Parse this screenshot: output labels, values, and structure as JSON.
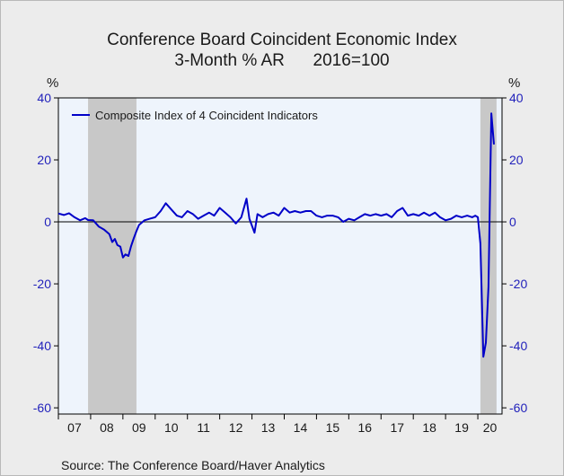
{
  "chart_data": {
    "type": "line",
    "title": "Conference Board Coincident Economic Index",
    "subtitle": "3-Month % AR      2016=100",
    "ylabel_left": "%",
    "ylabel_right": "%",
    "source": "Source:  The Conference Board/Haver Analytics",
    "ylim": [
      -62,
      40
    ],
    "yticks": [
      40,
      20,
      0,
      -20,
      -40,
      -60
    ],
    "xlim": [
      2007.0,
      2020.75
    ],
    "x_tick_labels": [
      "07",
      "08",
      "09",
      "10",
      "11",
      "12",
      "13",
      "14",
      "15",
      "16",
      "17",
      "18",
      "19",
      "20"
    ],
    "legend_position": "top-left",
    "recessions": [
      [
        2007.92,
        2009.42
      ],
      [
        2020.08,
        2020.58
      ]
    ],
    "series": [
      {
        "name": "Composite Index of 4 Coincident Indicators",
        "color": "#0000c8",
        "points": [
          [
            2007.0,
            2.7
          ],
          [
            2007.17,
            2.2
          ],
          [
            2007.33,
            2.8
          ],
          [
            2007.5,
            1.5
          ],
          [
            2007.67,
            0.5
          ],
          [
            2007.83,
            1.2
          ],
          [
            2007.92,
            0.6
          ],
          [
            2008.08,
            0.5
          ],
          [
            2008.25,
            -1.5
          ],
          [
            2008.42,
            -2.5
          ],
          [
            2008.58,
            -4.0
          ],
          [
            2008.67,
            -6.5
          ],
          [
            2008.75,
            -5.5
          ],
          [
            2008.83,
            -7.5
          ],
          [
            2008.92,
            -8.0
          ],
          [
            2009.0,
            -11.5
          ],
          [
            2009.08,
            -10.5
          ],
          [
            2009.17,
            -11.0
          ],
          [
            2009.25,
            -8.0
          ],
          [
            2009.33,
            -5.5
          ],
          [
            2009.42,
            -3.0
          ],
          [
            2009.5,
            -1.0
          ],
          [
            2009.67,
            0.5
          ],
          [
            2009.83,
            1.0
          ],
          [
            2010.0,
            1.5
          ],
          [
            2010.17,
            3.5
          ],
          [
            2010.33,
            6.0
          ],
          [
            2010.5,
            4.0
          ],
          [
            2010.67,
            2.0
          ],
          [
            2010.83,
            1.5
          ],
          [
            2011.0,
            3.5
          ],
          [
            2011.17,
            2.5
          ],
          [
            2011.33,
            1.0
          ],
          [
            2011.5,
            2.0
          ],
          [
            2011.67,
            3.0
          ],
          [
            2011.83,
            2.0
          ],
          [
            2012.0,
            4.5
          ],
          [
            2012.17,
            3.0
          ],
          [
            2012.33,
            1.5
          ],
          [
            2012.5,
            -0.5
          ],
          [
            2012.67,
            1.5
          ],
          [
            2012.83,
            7.5
          ],
          [
            2012.92,
            1.0
          ],
          [
            2013.08,
            -3.5
          ],
          [
            2013.17,
            2.5
          ],
          [
            2013.33,
            1.5
          ],
          [
            2013.5,
            2.5
          ],
          [
            2013.67,
            3.0
          ],
          [
            2013.83,
            2.0
          ],
          [
            2014.0,
            4.5
          ],
          [
            2014.17,
            3.0
          ],
          [
            2014.33,
            3.5
          ],
          [
            2014.5,
            3.0
          ],
          [
            2014.67,
            3.5
          ],
          [
            2014.83,
            3.5
          ],
          [
            2015.0,
            2.0
          ],
          [
            2015.17,
            1.5
          ],
          [
            2015.33,
            2.0
          ],
          [
            2015.5,
            2.0
          ],
          [
            2015.67,
            1.5
          ],
          [
            2015.83,
            0.0
          ],
          [
            2016.0,
            1.0
          ],
          [
            2016.17,
            0.5
          ],
          [
            2016.33,
            1.5
          ],
          [
            2016.5,
            2.5
          ],
          [
            2016.67,
            2.0
          ],
          [
            2016.83,
            2.5
          ],
          [
            2017.0,
            2.0
          ],
          [
            2017.17,
            2.5
          ],
          [
            2017.33,
            1.5
          ],
          [
            2017.5,
            3.5
          ],
          [
            2017.67,
            4.5
          ],
          [
            2017.83,
            2.0
          ],
          [
            2018.0,
            2.5
          ],
          [
            2018.17,
            2.0
          ],
          [
            2018.33,
            3.0
          ],
          [
            2018.5,
            2.0
          ],
          [
            2018.67,
            3.0
          ],
          [
            2018.83,
            1.5
          ],
          [
            2019.0,
            0.5
          ],
          [
            2019.17,
            1.0
          ],
          [
            2019.33,
            2.0
          ],
          [
            2019.5,
            1.5
          ],
          [
            2019.67,
            2.0
          ],
          [
            2019.83,
            1.5
          ],
          [
            2019.92,
            2.0
          ],
          [
            2020.0,
            1.5
          ],
          [
            2020.08,
            -7.0
          ],
          [
            2020.17,
            -43.5
          ],
          [
            2020.25,
            -39.0
          ],
          [
            2020.33,
            -21.0
          ],
          [
            2020.42,
            35.0
          ],
          [
            2020.5,
            25.0
          ]
        ]
      }
    ]
  }
}
